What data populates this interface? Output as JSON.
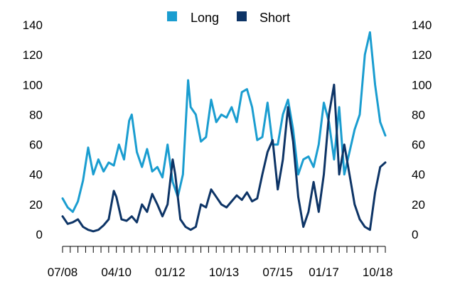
{
  "chart_data": {
    "type": "line",
    "title": "",
    "xlabel": "",
    "ylabel": "",
    "ylim": [
      0,
      140
    ],
    "y_ticks": [
      0,
      20,
      40,
      60,
      80,
      100,
      120,
      140
    ],
    "y_axis_sides": [
      "left",
      "right"
    ],
    "grid": false,
    "legend_position": "top-center",
    "x_range": [
      "2008-07",
      "2019-01"
    ],
    "x_tick_labels": [
      "07/08",
      "04/10",
      "01/12",
      "10/13",
      "07/15",
      "01/17",
      "10/18"
    ],
    "x_tick_label_dates": [
      "2008-07",
      "2010-04",
      "2012-01",
      "2013-10",
      "2015-07",
      "2017-01",
      "2018-10"
    ],
    "x_minor_ticks": "quarterly",
    "series": [
      {
        "name": "Long",
        "color": "#1a9dd0",
        "points": [
          [
            "2008-07",
            24
          ],
          [
            "2008-09",
            18
          ],
          [
            "2008-11",
            15
          ],
          [
            "2009-01",
            22
          ],
          [
            "2009-03",
            36
          ],
          [
            "2009-05",
            58
          ],
          [
            "2009-07",
            40
          ],
          [
            "2009-09",
            50
          ],
          [
            "2009-11",
            42
          ],
          [
            "2010-01",
            48
          ],
          [
            "2010-03",
            46
          ],
          [
            "2010-05",
            60
          ],
          [
            "2010-07",
            50
          ],
          [
            "2010-09",
            76
          ],
          [
            "2010-10",
            80
          ],
          [
            "2010-12",
            55
          ],
          [
            "2011-02",
            45
          ],
          [
            "2011-04",
            57
          ],
          [
            "2011-06",
            42
          ],
          [
            "2011-08",
            45
          ],
          [
            "2011-10",
            38
          ],
          [
            "2011-12",
            60
          ],
          [
            "2012-02",
            35
          ],
          [
            "2012-04",
            25
          ],
          [
            "2012-06",
            40
          ],
          [
            "2012-08",
            103
          ],
          [
            "2012-09",
            85
          ],
          [
            "2012-11",
            80
          ],
          [
            "2013-01",
            62
          ],
          [
            "2013-03",
            65
          ],
          [
            "2013-05",
            90
          ],
          [
            "2013-07",
            75
          ],
          [
            "2013-09",
            80
          ],
          [
            "2013-11",
            78
          ],
          [
            "2014-01",
            85
          ],
          [
            "2014-03",
            75
          ],
          [
            "2014-05",
            95
          ],
          [
            "2014-07",
            97
          ],
          [
            "2014-09",
            85
          ],
          [
            "2014-11",
            63
          ],
          [
            "2015-01",
            65
          ],
          [
            "2015-03",
            88
          ],
          [
            "2015-05",
            60
          ],
          [
            "2015-07",
            60
          ],
          [
            "2015-09",
            80
          ],
          [
            "2015-11",
            90
          ],
          [
            "2016-01",
            70
          ],
          [
            "2016-03",
            40
          ],
          [
            "2016-05",
            50
          ],
          [
            "2016-07",
            52
          ],
          [
            "2016-09",
            45
          ],
          [
            "2016-11",
            60
          ],
          [
            "2017-01",
            88
          ],
          [
            "2017-03",
            75
          ],
          [
            "2017-05",
            50
          ],
          [
            "2017-07",
            85
          ],
          [
            "2017-09",
            40
          ],
          [
            "2017-11",
            55
          ],
          [
            "2018-01",
            70
          ],
          [
            "2018-03",
            80
          ],
          [
            "2018-05",
            120
          ],
          [
            "2018-07",
            135
          ],
          [
            "2018-09",
            100
          ],
          [
            "2018-11",
            75
          ],
          [
            "2019-01",
            66
          ]
        ]
      },
      {
        "name": "Short",
        "color": "#0d3466",
        "points": [
          [
            "2008-07",
            12
          ],
          [
            "2008-09",
            7
          ],
          [
            "2008-11",
            8
          ],
          [
            "2009-01",
            10
          ],
          [
            "2009-03",
            5
          ],
          [
            "2009-05",
            3
          ],
          [
            "2009-07",
            2
          ],
          [
            "2009-09",
            3
          ],
          [
            "2009-11",
            6
          ],
          [
            "2010-01",
            10
          ],
          [
            "2010-03",
            29
          ],
          [
            "2010-04",
            25
          ],
          [
            "2010-06",
            10
          ],
          [
            "2010-08",
            9
          ],
          [
            "2010-10",
            12
          ],
          [
            "2010-12",
            8
          ],
          [
            "2011-02",
            20
          ],
          [
            "2011-04",
            15
          ],
          [
            "2011-06",
            27
          ],
          [
            "2011-08",
            20
          ],
          [
            "2011-10",
            12
          ],
          [
            "2011-12",
            20
          ],
          [
            "2012-02",
            50
          ],
          [
            "2012-03",
            40
          ],
          [
            "2012-05",
            10
          ],
          [
            "2012-07",
            5
          ],
          [
            "2012-09",
            3
          ],
          [
            "2012-11",
            5
          ],
          [
            "2013-01",
            20
          ],
          [
            "2013-03",
            18
          ],
          [
            "2013-05",
            30
          ],
          [
            "2013-07",
            25
          ],
          [
            "2013-09",
            20
          ],
          [
            "2013-11",
            18
          ],
          [
            "2014-01",
            22
          ],
          [
            "2014-03",
            26
          ],
          [
            "2014-05",
            23
          ],
          [
            "2014-07",
            28
          ],
          [
            "2014-09",
            22
          ],
          [
            "2014-11",
            24
          ],
          [
            "2015-01",
            40
          ],
          [
            "2015-03",
            55
          ],
          [
            "2015-05",
            63
          ],
          [
            "2015-07",
            30
          ],
          [
            "2015-09",
            50
          ],
          [
            "2015-11",
            85
          ],
          [
            "2016-01",
            62
          ],
          [
            "2016-03",
            25
          ],
          [
            "2016-05",
            5
          ],
          [
            "2016-07",
            15
          ],
          [
            "2016-09",
            35
          ],
          [
            "2016-11",
            15
          ],
          [
            "2017-01",
            40
          ],
          [
            "2017-03",
            80
          ],
          [
            "2017-05",
            100
          ],
          [
            "2017-07",
            40
          ],
          [
            "2017-09",
            60
          ],
          [
            "2017-11",
            40
          ],
          [
            "2018-01",
            20
          ],
          [
            "2018-03",
            10
          ],
          [
            "2018-05",
            5
          ],
          [
            "2018-07",
            3
          ],
          [
            "2018-09",
            28
          ],
          [
            "2018-11",
            45
          ],
          [
            "2019-01",
            48
          ]
        ]
      }
    ]
  }
}
